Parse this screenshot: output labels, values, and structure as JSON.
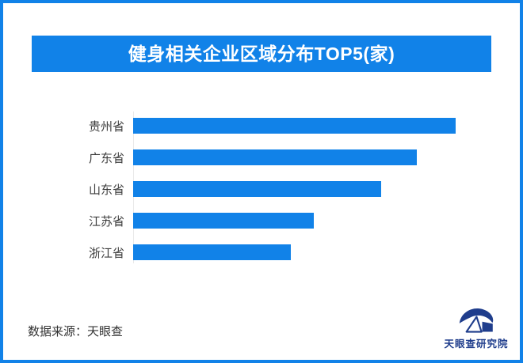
{
  "frame": {
    "border_color": "#1182e8",
    "background": "#ffffff"
  },
  "title_banner": {
    "text": "健身相关企业区域分布TOP5(家)",
    "background": "#1182e8",
    "text_color": "#ffffff"
  },
  "chart_data": {
    "type": "bar",
    "orientation": "horizontal",
    "title": "健身相关企业区域分布TOP5(家)",
    "categories": [
      "贵州省",
      "广东省",
      "山东省",
      "江苏省",
      "浙江省"
    ],
    "values": [
      100,
      88,
      77,
      56,
      49
    ],
    "value_scale": "relative bar lengths (no numeric axis, ticks or data labels shown)",
    "bar_color": "#1182e8",
    "axis_line_color": "#e9e9e9",
    "label_color": "#3d3d3d",
    "grid": false,
    "data_labels": false,
    "legend": false,
    "xlabel": "",
    "ylabel": ""
  },
  "footer": {
    "source_text": "数据来源：天眼查",
    "source_color": "#333333"
  },
  "brand": {
    "name": "天眼查研究院",
    "color": "#1f3d8c"
  }
}
